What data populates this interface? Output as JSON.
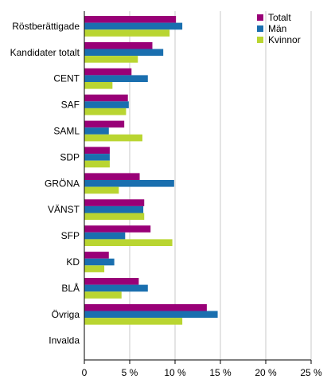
{
  "chart_data": {
    "type": "bar",
    "orientation": "horizontal",
    "categories": [
      "Röstberättigade",
      "Kandidater totalt",
      "CENT",
      "SAF",
      "SAML",
      "SDP",
      "GRÖNA",
      "VÄNST",
      "SFP",
      "KD",
      "BLÅ",
      "Övriga",
      "Invalda"
    ],
    "series": [
      {
        "name": "Totalt",
        "color": "#990077",
        "values": [
          10.1,
          7.5,
          5.2,
          4.8,
          4.4,
          2.8,
          6.1,
          6.6,
          7.3,
          2.7,
          6.0,
          13.5,
          0
        ]
      },
      {
        "name": "Män",
        "color": "#1a6faf",
        "values": [
          10.8,
          8.7,
          7.0,
          4.9,
          2.7,
          2.8,
          9.9,
          6.5,
          4.5,
          3.3,
          7.0,
          14.7,
          0
        ]
      },
      {
        "name": "Kvinnor",
        "color": "#b9d531",
        "values": [
          9.4,
          5.9,
          3.1,
          4.6,
          6.4,
          2.8,
          3.8,
          6.6,
          9.7,
          2.2,
          4.1,
          10.8,
          0
        ]
      }
    ],
    "xlim": [
      0,
      25
    ],
    "xticks": [
      0,
      5,
      10,
      15,
      20,
      25
    ],
    "xtick_labels": [
      "0",
      "5 %",
      "10 %",
      "15 %",
      "20 %",
      "25 %"
    ],
    "grid": "vertical",
    "legend": "top-right",
    "title": "",
    "xlabel": "",
    "ylabel": ""
  }
}
